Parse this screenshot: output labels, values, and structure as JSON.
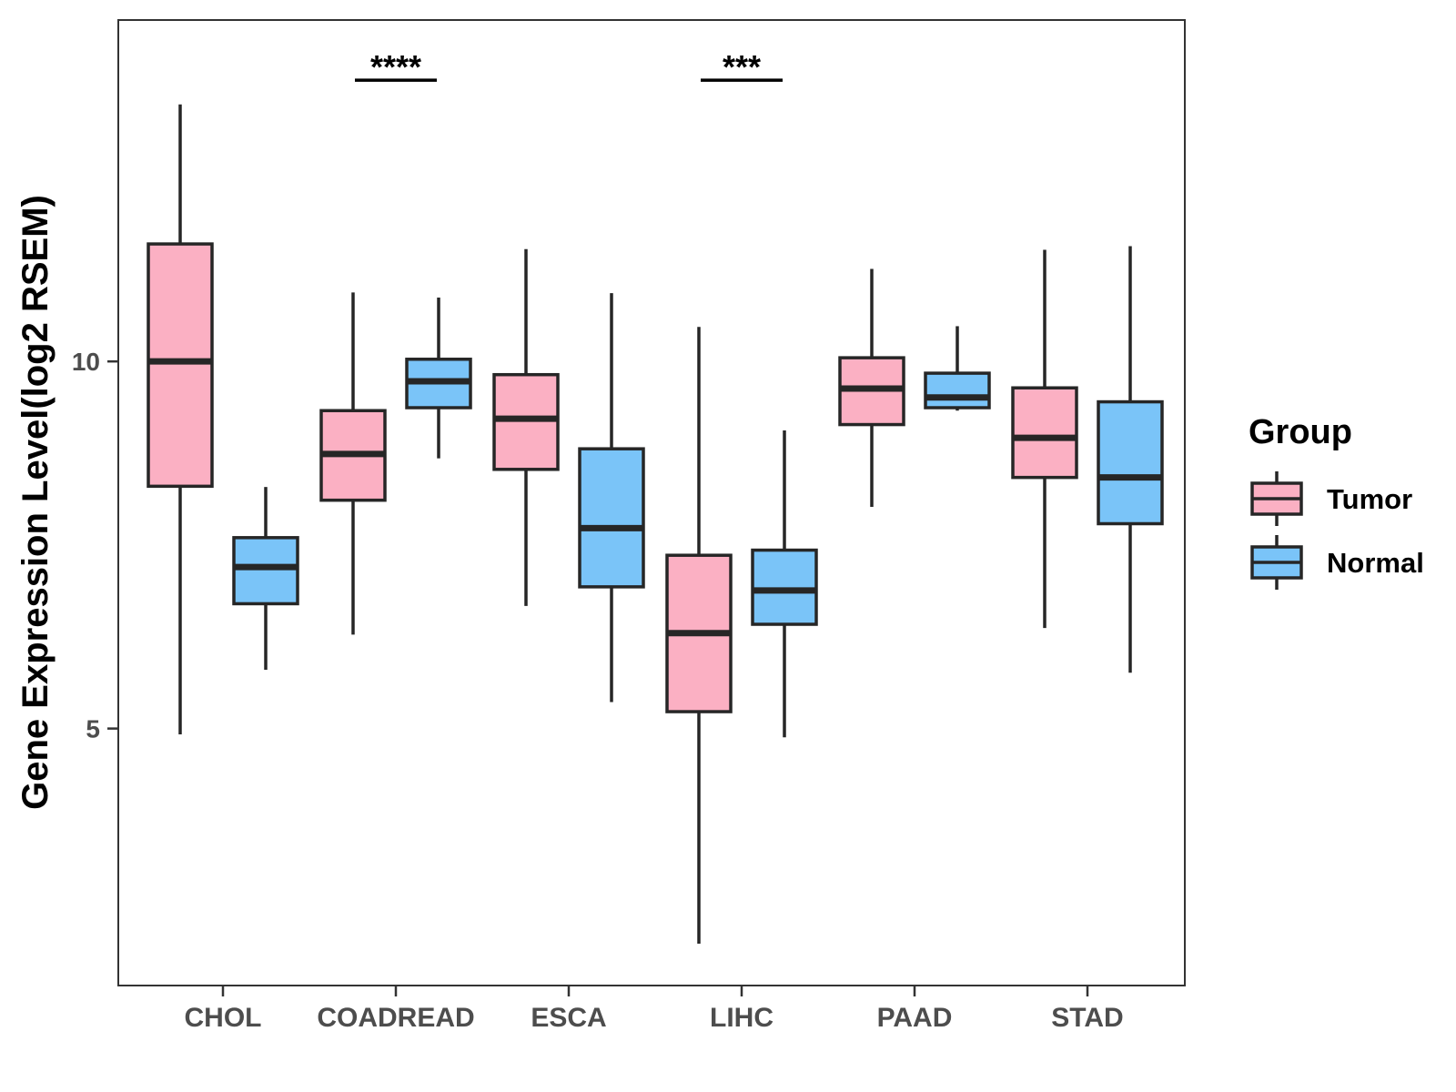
{
  "colors": {
    "tumor": "#FBB0C3",
    "normal": "#7AC4F8",
    "stroke": "#262626",
    "axis": "#333333",
    "text": "#000000",
    "tick_text": "#4D4D4D"
  },
  "chart_data": {
    "type": "boxplot",
    "title": "",
    "xlabel": "",
    "ylabel": "Gene Expression Level(log2 RSEM)",
    "ylim": [
      1.5,
      14.65
    ],
    "yticks": [
      5,
      10
    ],
    "categories": [
      "CHOL",
      "COADREAD",
      "ESCA",
      "LIHC",
      "PAAD",
      "STAD"
    ],
    "legend": {
      "title": "Group",
      "position": "right",
      "entries": [
        "Tumor",
        "Normal"
      ]
    },
    "grid": false,
    "series": [
      {
        "name": "Tumor",
        "boxes": [
          {
            "category": "CHOL",
            "min": 4.92,
            "q1": 8.3,
            "median": 10.0,
            "q3": 11.6,
            "max": 13.5
          },
          {
            "category": "COADREAD",
            "min": 6.28,
            "q1": 8.11,
            "median": 8.74,
            "q3": 9.33,
            "max": 10.94
          },
          {
            "category": "ESCA",
            "min": 6.67,
            "q1": 8.53,
            "median": 9.22,
            "q3": 9.82,
            "max": 11.53
          },
          {
            "category": "LIHC",
            "min": 2.07,
            "q1": 5.23,
            "median": 6.3,
            "q3": 7.36,
            "max": 10.47
          },
          {
            "category": "PAAD",
            "min": 8.02,
            "q1": 9.14,
            "median": 9.63,
            "q3": 10.05,
            "max": 11.26
          },
          {
            "category": "STAD",
            "min": 6.37,
            "q1": 8.42,
            "median": 8.96,
            "q3": 9.64,
            "max": 11.52
          }
        ]
      },
      {
        "name": "Normal",
        "boxes": [
          {
            "category": "CHOL",
            "min": 5.8,
            "q1": 6.7,
            "median": 7.2,
            "q3": 7.6,
            "max": 8.29
          },
          {
            "category": "COADREAD",
            "min": 8.68,
            "q1": 9.37,
            "median": 9.73,
            "q3": 10.03,
            "max": 10.87
          },
          {
            "category": "ESCA",
            "min": 5.36,
            "q1": 6.93,
            "median": 7.73,
            "q3": 8.81,
            "max": 10.93
          },
          {
            "category": "LIHC",
            "min": 4.88,
            "q1": 6.42,
            "median": 6.88,
            "q3": 7.43,
            "max": 9.06
          },
          {
            "category": "PAAD",
            "min": 9.33,
            "q1": 9.37,
            "median": 9.51,
            "q3": 9.84,
            "max": 10.48
          },
          {
            "category": "STAD",
            "min": 5.76,
            "q1": 7.79,
            "median": 8.42,
            "q3": 9.45,
            "max": 11.57
          }
        ]
      }
    ],
    "annotations": [
      {
        "category": "COADREAD",
        "label": "****",
        "y": 13.83
      },
      {
        "category": "LIHC",
        "label": "***",
        "y": 13.83
      }
    ]
  }
}
